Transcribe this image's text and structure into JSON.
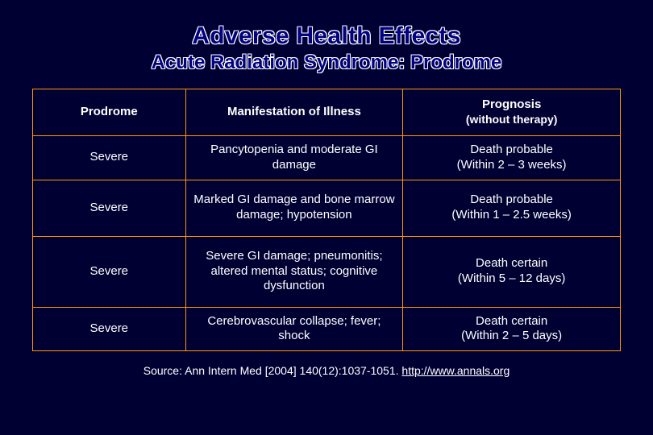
{
  "colors": {
    "background": "#000033",
    "title_fill": "#000080",
    "title_outline": "#ffffff",
    "table_border": "#ff9900",
    "text": "#ffffff"
  },
  "typography": {
    "title_fontsize": 30,
    "subtitle_fontsize": 24,
    "header_fontsize": 15,
    "cell_fontsize": 15,
    "source_fontsize": 14
  },
  "heading": {
    "title": "Adverse Health Effects",
    "subtitle": "Acute Radiation Syndrome: Prodrome"
  },
  "table": {
    "type": "table",
    "column_widths_pct": [
      26,
      37,
      37
    ],
    "columns": {
      "c0": "Prodrome",
      "c1": "Manifestation of Illness",
      "c2_line1": "Prognosis",
      "c2_line2": "(without therapy)"
    },
    "rows": {
      "r0": {
        "c0": "Severe",
        "c1": "Pancytopenia and moderate GI damage",
        "c2_line1": "Death probable",
        "c2_line2": "(Within 2 – 3 weeks)"
      },
      "r1": {
        "c0": "Severe",
        "c1": "Marked GI damage and bone marrow damage; hypotension",
        "c2_line1": "Death probable",
        "c2_line2": "(Within 1 – 2.5 weeks)"
      },
      "r2": {
        "c0": "Severe",
        "c1": "Severe GI damage; pneumonitis; altered mental status; cognitive dysfunction",
        "c2_line1": "Death certain",
        "c2_line2": "(Within 5 – 12 days)"
      },
      "r3": {
        "c0": "Severe",
        "c1": "Cerebrovascular collapse; fever; shock",
        "c2_line1": "Death certain",
        "c2_line2": "(Within 2 – 5 days)"
      }
    }
  },
  "source": {
    "prefix": "Source: Ann Intern Med [2004] 140(12):1037-1051. ",
    "link_text": "http://www.annals.org"
  }
}
